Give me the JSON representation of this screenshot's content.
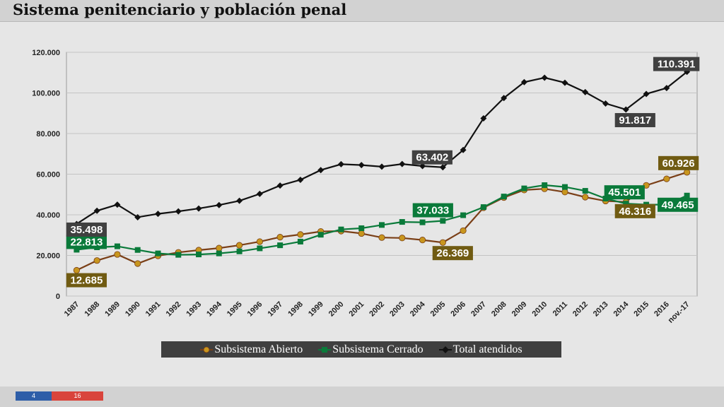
{
  "page": {
    "title": "Sistema penitenciario y población penal",
    "page_left": "4",
    "page_right": "16"
  },
  "chart_data": {
    "type": "line",
    "title": "",
    "xlabel": "",
    "ylabel": "",
    "ylim": [
      0,
      120000
    ],
    "yticks": [
      0,
      20000,
      40000,
      60000,
      80000,
      100000,
      120000
    ],
    "ytick_labels": [
      "0",
      "20.000",
      "40.000",
      "60.000",
      "80.000",
      "100.000",
      "120.000"
    ],
    "grid": true,
    "legend_position": "bottom",
    "categories": [
      "1987",
      "1988",
      "1989",
      "1990",
      "1991",
      "1992",
      "1993",
      "1994",
      "1995",
      "1996",
      "1997",
      "1998",
      "1999",
      "2000",
      "2001",
      "2002",
      "2003",
      "2004",
      "2005",
      "2006",
      "2007",
      "2008",
      "2009",
      "2010",
      "2011",
      "2012",
      "2013",
      "2014",
      "2015",
      "2016",
      "nov.-17"
    ],
    "series": [
      {
        "name": "Subsistema Abierto",
        "color": "#c8961e",
        "line_color": "#7a3f17",
        "marker": "circle",
        "values": [
          12685,
          17500,
          20500,
          16000,
          19800,
          21500,
          22600,
          23600,
          25000,
          26800,
          29000,
          30300,
          31800,
          32000,
          30800,
          28800,
          28600,
          27600,
          26369,
          32200,
          43500,
          48500,
          52200,
          52800,
          51200,
          48700,
          46800,
          46316,
          54500,
          57700,
          60926
        ]
      },
      {
        "name": "Subsistema Cerrado",
        "color": "#0a7a3a",
        "line_color": "#0a7a3a",
        "marker": "square",
        "values": [
          22813,
          24000,
          24500,
          22700,
          21000,
          20300,
          20500,
          21000,
          22000,
          23500,
          25000,
          26800,
          30200,
          32800,
          33400,
          35000,
          36500,
          36300,
          37033,
          39800,
          43800,
          49000,
          53000,
          54600,
          53700,
          51800,
          48000,
          45501,
          45000,
          45000,
          49465
        ]
      },
      {
        "name": "Total atendidos",
        "color": "#111111",
        "line_color": "#111111",
        "marker": "diamond",
        "values": [
          35498,
          42000,
          45000,
          38800,
          40500,
          41700,
          43100,
          44800,
          46900,
          50300,
          54400,
          57200,
          62000,
          64900,
          64500,
          63700,
          65000,
          64000,
          63402,
          71900,
          87500,
          97500,
          105300,
          107500,
          105000,
          100400,
          94800,
          91817,
          99500,
          102400,
          110391
        ]
      }
    ],
    "data_labels": [
      {
        "series": 0,
        "index": 0,
        "text": "12.685",
        "bg": "#705b12"
      },
      {
        "series": 0,
        "index": 18,
        "text": "26.369",
        "bg": "#705b12"
      },
      {
        "series": 0,
        "index": 27,
        "text": "46.316",
        "bg": "#705b12"
      },
      {
        "series": 0,
        "index": 30,
        "text": "60.926",
        "bg": "#705b12"
      },
      {
        "series": 1,
        "index": 0,
        "text": "22.813",
        "bg": "#0a7a3a"
      },
      {
        "series": 1,
        "index": 18,
        "text": "37.033",
        "bg": "#0a7a3a"
      },
      {
        "series": 1,
        "index": 27,
        "text": "45.501",
        "bg": "#0a7a3a"
      },
      {
        "series": 1,
        "index": 30,
        "text": "49.465",
        "bg": "#0a7a3a"
      },
      {
        "series": 2,
        "index": 0,
        "text": "35.498",
        "bg": "#404040"
      },
      {
        "series": 2,
        "index": 18,
        "text": "63.402",
        "bg": "#404040"
      },
      {
        "series": 2,
        "index": 27,
        "text": "91.817",
        "bg": "#404040"
      },
      {
        "series": 2,
        "index": 30,
        "text": "110.391",
        "bg": "#404040"
      }
    ]
  }
}
